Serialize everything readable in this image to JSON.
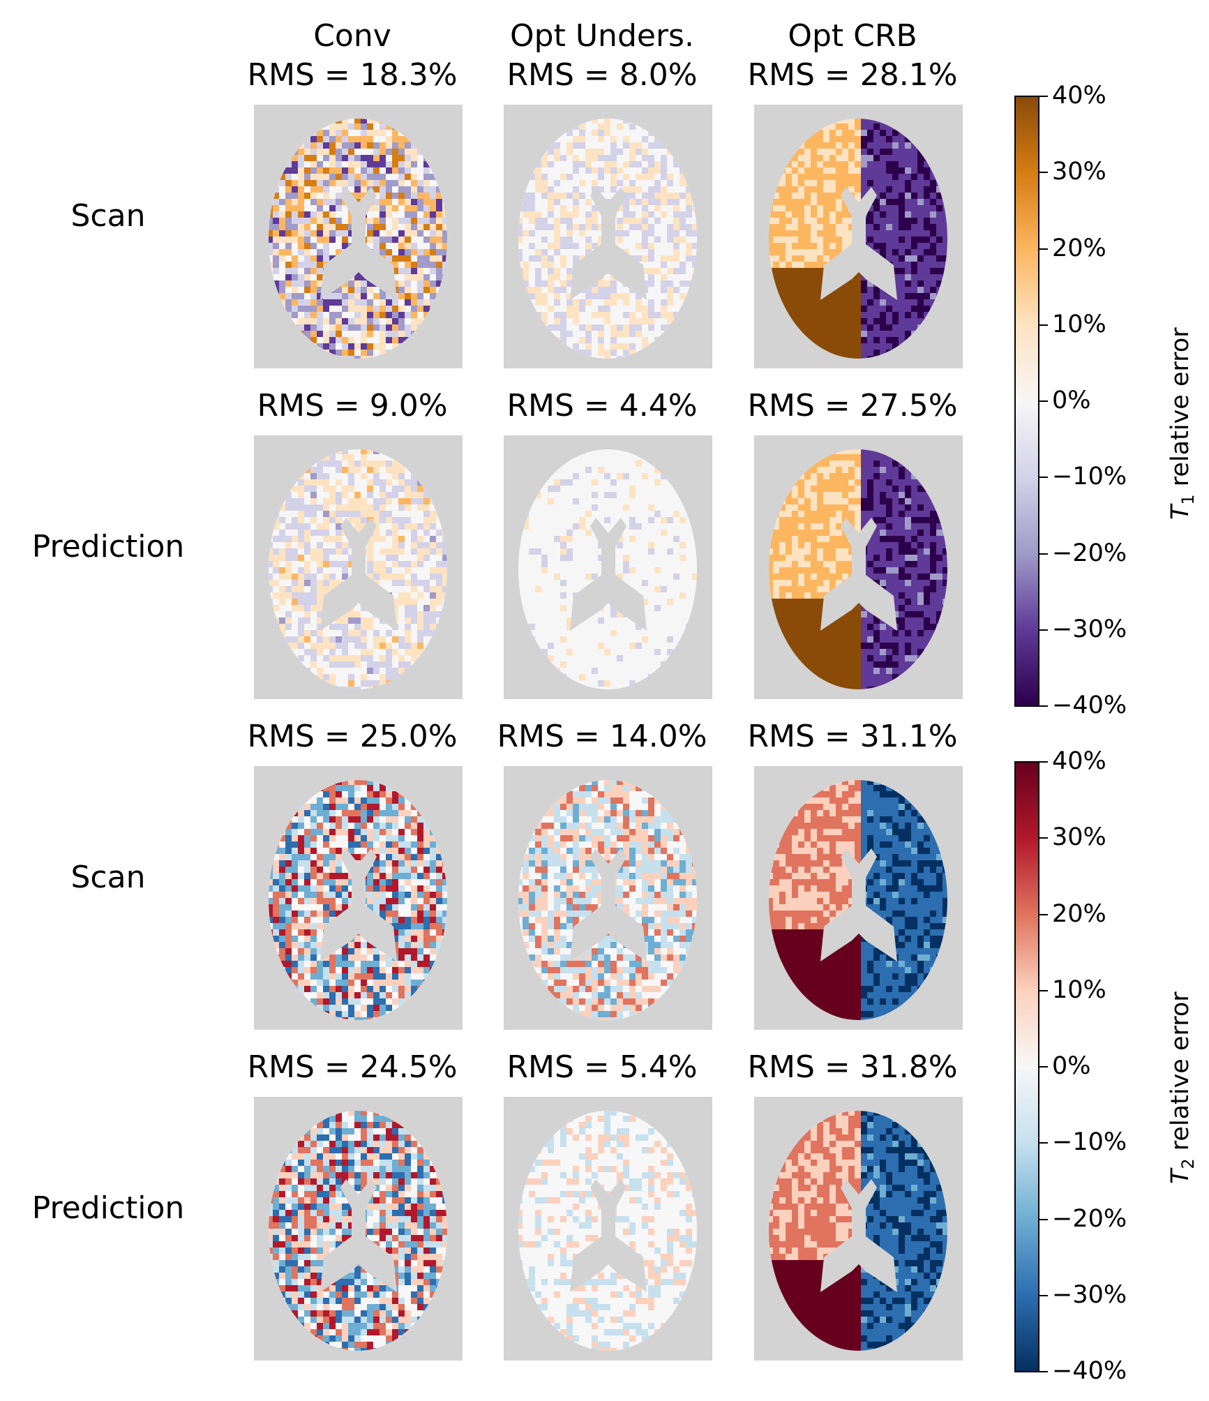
{
  "columns": [
    {
      "title": "Conv"
    },
    {
      "title": "Opt Unders."
    },
    {
      "title": "Opt CRB"
    }
  ],
  "rows": [
    {
      "label": "Scan",
      "param": "T1",
      "rms": [
        "RMS = 18.3%",
        "RMS = 8.0%",
        "RMS = 28.1%"
      ]
    },
    {
      "label": "Prediction",
      "param": "T1",
      "rms": [
        "RMS = 9.0%",
        "RMS = 4.4%",
        "RMS = 27.5%"
      ]
    },
    {
      "label": "Scan",
      "param": "T2",
      "rms": [
        "RMS = 25.0%",
        "RMS = 14.0%",
        "RMS = 31.1%"
      ]
    },
    {
      "label": "Prediction",
      "param": "T2",
      "rms": [
        "RMS = 24.5%",
        "RMS = 5.4%",
        "RMS = 31.8%"
      ]
    }
  ],
  "colorbars": [
    {
      "sub": "1",
      "label_suffix": " relative error",
      "ticks": [
        "40%",
        "30%",
        "20%",
        "10%",
        "0%",
        "−10%",
        "−20%",
        "−30%",
        "−40%"
      ],
      "colors": [
        "#8a4b08",
        "#d67d14",
        "#fcb660",
        "#fde3c2",
        "#f7f6f6",
        "#d4d2e8",
        "#a09bc9",
        "#5f3a98",
        "#2d004b"
      ]
    },
    {
      "sub": "2",
      "label_suffix": " relative error",
      "ticks": [
        "40%",
        "30%",
        "20%",
        "10%",
        "0%",
        "−10%",
        "−20%",
        "−30%",
        "−40%"
      ],
      "colors": [
        "#67001f",
        "#b2182b",
        "#e0745f",
        "#fbd1bd",
        "#f7f7f7",
        "#c6e0ee",
        "#6eaed3",
        "#2c6eb0",
        "#053061"
      ]
    }
  ]
}
